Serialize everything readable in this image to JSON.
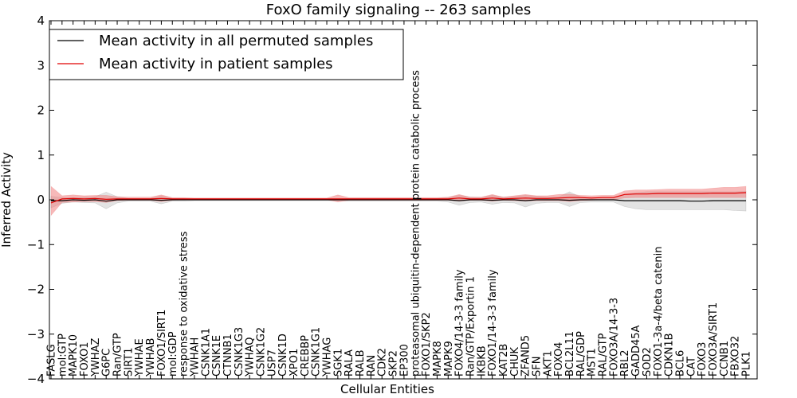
{
  "chart_data": {
    "type": "line",
    "title": "FoxO family signaling -- 263 samples",
    "xlabel": "Cellular Entities",
    "ylabel": "Inferred Activity",
    "ylim": [
      -4,
      4
    ],
    "yticks": [
      {
        "value": 4,
        "label": "4"
      },
      {
        "value": 3,
        "label": "3"
      },
      {
        "value": 2,
        "label": "2"
      },
      {
        "value": 1,
        "label": "1"
      },
      {
        "value": 0,
        "label": "0"
      },
      {
        "value": -1,
        "label": "−1"
      },
      {
        "value": -2,
        "label": "−2"
      },
      {
        "value": -3,
        "label": "−3"
      },
      {
        "value": -4,
        "label": "−4"
      }
    ],
    "grid": false,
    "legend_position": "top-left",
    "categories": [
      "FASLG",
      "mol:GTP",
      "MAPK10",
      "FOXO1",
      "YWHAZ",
      "G6PC",
      "Ran/GTP",
      "SIRT1",
      "YWHAE",
      "YWHAB",
      "FOXO1/SIRT1",
      "mol:GDP",
      "response to oxidative stress",
      "YWHAH",
      "CSNK1A1",
      "CSNK1E",
      "CTNNB1",
      "CSNK1G3",
      "YWHAQ",
      "CSNK1G2",
      "USP7",
      "CSNK1D",
      "XPO1",
      "CREBBP",
      "CSNK1G1",
      "YWHAG",
      "SGK1",
      "RALA",
      "RALB",
      "RAN",
      "CDK2",
      "SKP2",
      "EP300",
      "proteasomal ubiquitin-dependent protein catabolic process",
      "FOXO1/SKP2",
      "MAPK8",
      "MAPK9",
      "FOXO4/14-3-3 family",
      "Ran/GTP/Exportin 1",
      "IKBKB",
      "FOXO1/14-3-3 family",
      "KAT2B",
      "CHUK",
      "ZFAND5",
      "SFN",
      "AKT1",
      "FOXO4",
      "BCL2L11",
      "RAL/GDP",
      "MST1",
      "RAL/GTP",
      "FOXO3A/14-3-3",
      "RBL2",
      "GADD45A",
      "SOD2",
      "FOXO1-3a-4/beta catenin",
      "CDKN1B",
      "BCL6",
      "CAT",
      "FOXO3",
      "FOXO3A/SIRT1",
      "CCNB1",
      "FBXO32",
      "PLK1"
    ],
    "series": [
      {
        "name": "Mean activity in all permuted samples",
        "color": "#000000",
        "band_color": "#c8c8c8",
        "values": [
          -0.02,
          -0.02,
          0,
          -0.01,
          0,
          -0.03,
          0,
          0,
          0,
          0,
          -0.01,
          0,
          0,
          0,
          0,
          0,
          0,
          0,
          0,
          0,
          0,
          0,
          0,
          0,
          0,
          0,
          0,
          0,
          0,
          0,
          0,
          0,
          0,
          0,
          0,
          0,
          0,
          -0.02,
          0,
          0,
          -0.01,
          0,
          0,
          -0.02,
          0,
          0,
          0,
          -0.01,
          0,
          0,
          0,
          0,
          -0.02,
          -0.02,
          -0.02,
          -0.02,
          -0.02,
          -0.02,
          -0.03,
          -0.03,
          -0.02,
          -0.02,
          -0.02,
          -0.02
        ],
        "lower": [
          -0.18,
          -0.08,
          -0.05,
          -0.06,
          -0.07,
          -0.2,
          -0.07,
          -0.03,
          -0.03,
          -0.03,
          -0.09,
          -0.03,
          -0.03,
          -0.02,
          -0.02,
          -0.02,
          -0.02,
          -0.02,
          -0.02,
          -0.02,
          -0.02,
          -0.02,
          -0.02,
          -0.02,
          -0.02,
          -0.02,
          -0.02,
          -0.03,
          -0.03,
          -0.03,
          -0.03,
          -0.03,
          -0.03,
          -0.03,
          -0.03,
          -0.03,
          -0.05,
          -0.12,
          -0.06,
          -0.05,
          -0.1,
          -0.06,
          -0.07,
          -0.16,
          -0.08,
          -0.06,
          -0.06,
          -0.15,
          -0.06,
          -0.05,
          -0.05,
          -0.05,
          -0.15,
          -0.2,
          -0.22,
          -0.22,
          -0.22,
          -0.22,
          -0.22,
          -0.22,
          -0.22,
          -0.22,
          -0.24,
          -0.25
        ],
        "upper": [
          0.08,
          0.05,
          0.05,
          0.06,
          0.07,
          0.17,
          0.07,
          0.03,
          0.03,
          0.03,
          0.09,
          0.03,
          0.03,
          0.02,
          0.02,
          0.02,
          0.02,
          0.02,
          0.02,
          0.02,
          0.02,
          0.02,
          0.02,
          0.02,
          0.02,
          0.02,
          0.02,
          0.03,
          0.03,
          0.03,
          0.03,
          0.03,
          0.03,
          0.03,
          0.03,
          0.03,
          0.05,
          0.1,
          0.06,
          0.05,
          0.1,
          0.06,
          0.07,
          0.1,
          0.08,
          0.06,
          0.06,
          0.18,
          0.06,
          0.05,
          0.05,
          0.05,
          0.12,
          0.16,
          0.18,
          0.18,
          0.18,
          0.18,
          0.18,
          0.18,
          0.18,
          0.18,
          0.18,
          0.19
        ]
      },
      {
        "name": "Mean activity in patient samples",
        "color": "#e00000",
        "band_color": "#f08080",
        "values": [
          -0.07,
          0.02,
          0.03,
          0.02,
          0.03,
          0.01,
          0.02,
          0.02,
          0.02,
          0.02,
          0.03,
          0.02,
          0.02,
          0.02,
          0.02,
          0.02,
          0.02,
          0.02,
          0.02,
          0.02,
          0.02,
          0.02,
          0.02,
          0.02,
          0.02,
          0.02,
          0.02,
          0.02,
          0.02,
          0.02,
          0.02,
          0.02,
          0.02,
          0.02,
          0.02,
          0.02,
          0.02,
          0.04,
          0.02,
          0.02,
          0.04,
          0.02,
          0.03,
          0.04,
          0.03,
          0.03,
          0.04,
          0.05,
          0.05,
          0.04,
          0.05,
          0.05,
          0.12,
          0.13,
          0.13,
          0.14,
          0.14,
          0.14,
          0.14,
          0.14,
          0.15,
          0.15,
          0.15,
          0.16
        ],
        "lower": [
          -0.35,
          -0.06,
          -0.05,
          -0.04,
          -0.04,
          -0.06,
          -0.02,
          -0.01,
          -0.01,
          -0.01,
          -0.04,
          -0.01,
          0,
          0,
          0,
          0,
          0,
          0,
          0,
          0,
          0,
          0,
          0,
          0,
          0,
          0,
          -0.05,
          -0.01,
          -0.01,
          -0.01,
          -0.01,
          -0.01,
          -0.01,
          -0.01,
          -0.01,
          -0.01,
          -0.01,
          -0.03,
          -0.01,
          -0.01,
          -0.03,
          -0.01,
          -0.02,
          -0.03,
          -0.02,
          -0.02,
          -0.02,
          -0.04,
          -0.02,
          -0.01,
          0,
          0,
          0.04,
          0.05,
          0.05,
          0.05,
          0.05,
          0.05,
          0.05,
          0.05,
          0.05,
          0.05,
          0.05,
          0.05
        ],
        "upper": [
          0.3,
          0.09,
          0.11,
          0.09,
          0.1,
          0.1,
          0.07,
          0.06,
          0.06,
          0.06,
          0.11,
          0.05,
          0.05,
          0.04,
          0.04,
          0.04,
          0.04,
          0.04,
          0.04,
          0.04,
          0.04,
          0.04,
          0.04,
          0.04,
          0.04,
          0.04,
          0.11,
          0.05,
          0.05,
          0.05,
          0.05,
          0.05,
          0.05,
          0.05,
          0.05,
          0.05,
          0.06,
          0.12,
          0.06,
          0.06,
          0.12,
          0.06,
          0.09,
          0.12,
          0.09,
          0.09,
          0.12,
          0.13,
          0.1,
          0.09,
          0.1,
          0.1,
          0.2,
          0.22,
          0.22,
          0.23,
          0.24,
          0.24,
          0.24,
          0.24,
          0.26,
          0.28,
          0.28,
          0.3
        ]
      }
    ]
  }
}
